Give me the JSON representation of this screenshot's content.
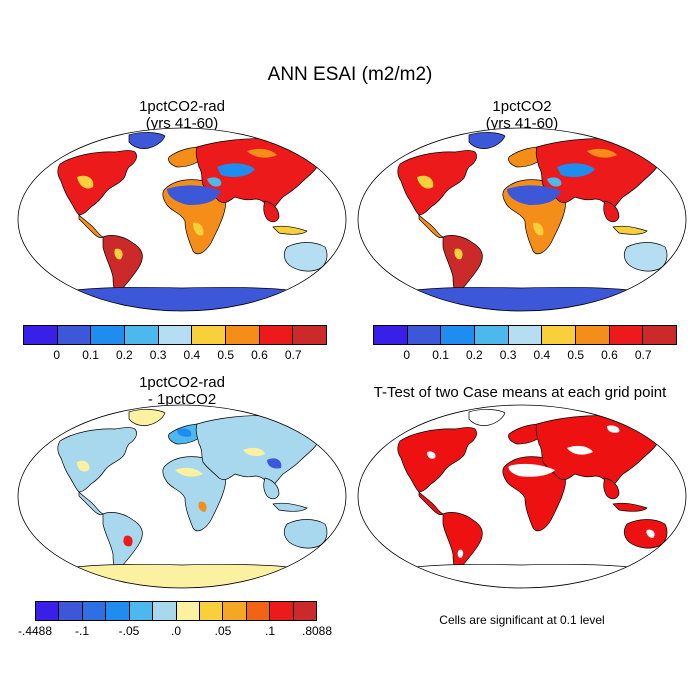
{
  "figure": {
    "title": "ANN ESAI (m2/m2)"
  },
  "panels": [
    {
      "title_line1": "1pctCO2-rad",
      "title_line2": "(yrs 41-60)",
      "kind": "esai"
    },
    {
      "title_line1": "1pctCO2",
      "title_line2": "(yrs 41-60)",
      "kind": "esai"
    },
    {
      "title_line1": "1pctCO2-rad",
      "title_line2": "- 1pctCO2",
      "kind": "diff"
    },
    {
      "title_line1": "T-Test of two Case means at each grid point",
      "title_line2": "",
      "kind": "ttest"
    }
  ],
  "colorbar_main": {
    "colors": [
      "#3a1fe8",
      "#3d57d9",
      "#1f8df0",
      "#4db8ee",
      "#b5def2",
      "#f7d03c",
      "#f58e18",
      "#ec1a1a",
      "#cc2a2a"
    ],
    "ticks": [
      "0",
      "0.1",
      "0.2",
      "0.3",
      "0.4",
      "0.5",
      "0.6",
      "0.7"
    ]
  },
  "colorbar_diff": {
    "colors": [
      "#3a1fe8",
      "#3d57d9",
      "#2e6fe3",
      "#1f8df0",
      "#4db8ee",
      "#a8d8ee",
      "#fcf1a0",
      "#f7d03c",
      "#f5a623",
      "#f06414",
      "#ec1a1a",
      "#cc2a2a"
    ],
    "ticks": [
      "-.4488",
      "-.1",
      "-.05",
      ".0",
      ".05",
      ".1",
      ".8088"
    ]
  },
  "ttest_note": "Cells are significant at 0.1 level",
  "map_colors": {
    "ocean": "#ffffff",
    "outline": "#000000",
    "significant": "#ee1111"
  }
}
